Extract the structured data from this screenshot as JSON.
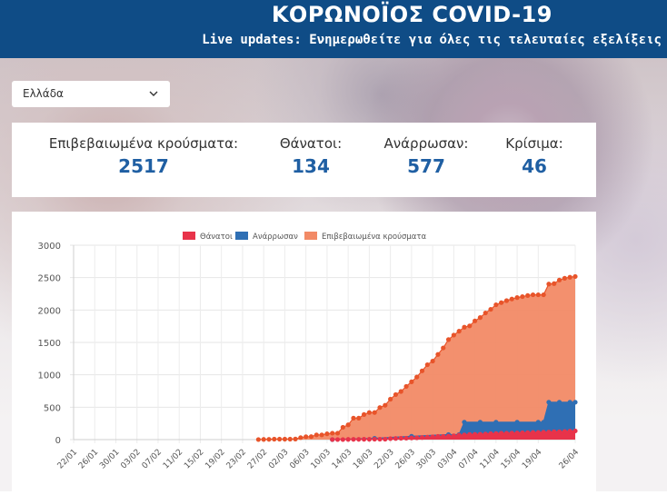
{
  "header": {
    "title": "ΚΟΡΩΝΟΪΟΣ COVID-19",
    "subtitle": "Live updates: Ενημερωθείτε για όλες τις τελευταίες εξελίξεις"
  },
  "country_select": {
    "value": "Ελλάδα"
  },
  "stats": [
    {
      "label": "Επιβεβαιωμένα κρούσματα:",
      "value": "2517"
    },
    {
      "label": "Θάνατοι:",
      "value": "134"
    },
    {
      "label": "Ανάρρωσαν:",
      "value": "577"
    },
    {
      "label": "Κρίσιμα:",
      "value": "46"
    }
  ],
  "colors": {
    "header_bg": "#0f4c86",
    "deaths": "#e8334a",
    "recovered": "#2f6fb4",
    "confirmed": "#f28a66",
    "confirmed_points": "#e8542a",
    "stat_value": "#1f5fa3"
  },
  "chart_data": {
    "type": "area",
    "x_tick_labels": [
      "22/01",
      "26/01",
      "30/01",
      "03/02",
      "07/02",
      "11/02",
      "15/02",
      "19/02",
      "23/02",
      "27/02",
      "02/03",
      "06/03",
      "10/03",
      "14/03",
      "18/03",
      "22/03",
      "26/03",
      "30/03",
      "03/04",
      "07/04",
      "11/04",
      "15/04",
      "19/04",
      "26/04"
    ],
    "ylim": [
      0,
      3000
    ],
    "y_ticks": [
      "0",
      "500",
      "1000",
      "1500",
      "2000",
      "2500",
      "3000"
    ],
    "grid": true,
    "legend_position": "top",
    "series": [
      {
        "name": "Θάνατοι",
        "points": [
          [
            "11/03",
            1
          ],
          [
            "12/03",
            1
          ],
          [
            "13/03",
            1
          ],
          [
            "14/03",
            3
          ],
          [
            "15/03",
            4
          ],
          [
            "16/03",
            4
          ],
          [
            "17/03",
            5
          ],
          [
            "18/03",
            5
          ],
          [
            "19/03",
            6
          ],
          [
            "20/03",
            6
          ],
          [
            "21/03",
            6
          ],
          [
            "22/03",
            15
          ],
          [
            "23/03",
            17
          ],
          [
            "24/03",
            20
          ],
          [
            "25/03",
            22
          ],
          [
            "26/03",
            26
          ],
          [
            "27/03",
            28
          ],
          [
            "28/03",
            32
          ],
          [
            "29/03",
            38
          ],
          [
            "30/03",
            43
          ],
          [
            "31/03",
            49
          ],
          [
            "01/04",
            50
          ],
          [
            "02/04",
            53
          ],
          [
            "03/04",
            59
          ],
          [
            "04/04",
            68
          ],
          [
            "05/04",
            73
          ],
          [
            "06/04",
            79
          ],
          [
            "07/04",
            81
          ],
          [
            "08/04",
            83
          ],
          [
            "09/04",
            86
          ],
          [
            "10/04",
            92
          ],
          [
            "11/04",
            93
          ],
          [
            "12/04",
            98
          ],
          [
            "13/04",
            99
          ],
          [
            "14/04",
            101
          ],
          [
            "15/04",
            102
          ],
          [
            "16/04",
            105
          ],
          [
            "17/04",
            108
          ],
          [
            "18/04",
            110
          ],
          [
            "19/04",
            110
          ],
          [
            "20/04",
            114
          ],
          [
            "21/04",
            116
          ],
          [
            "22/04",
            121
          ],
          [
            "23/04",
            121
          ],
          [
            "24/04",
            125
          ],
          [
            "25/04",
            130
          ],
          [
            "26/04",
            134
          ]
        ]
      },
      {
        "name": "Ανάρρωσαν",
        "points": [
          [
            "11/03",
            0
          ],
          [
            "19/03",
            19
          ],
          [
            "26/03",
            52
          ],
          [
            "02/04",
            78
          ],
          [
            "04/04",
            78
          ],
          [
            "05/04",
            269
          ],
          [
            "08/04",
            269
          ],
          [
            "11/04",
            269
          ],
          [
            "15/04",
            269
          ],
          [
            "19/04",
            269
          ],
          [
            "20/04",
            269
          ],
          [
            "21/04",
            577
          ],
          [
            "23/04",
            577
          ],
          [
            "25/04",
            577
          ],
          [
            "26/04",
            577
          ]
        ]
      },
      {
        "name": "Επιβεβαιωμένα κρούσματα",
        "points": [
          [
            "26/02",
            1
          ],
          [
            "27/02",
            3
          ],
          [
            "28/02",
            4
          ],
          [
            "29/02",
            7
          ],
          [
            "01/03",
            7
          ],
          [
            "02/03",
            7
          ],
          [
            "03/03",
            7
          ],
          [
            "04/03",
            9
          ],
          [
            "05/03",
            31
          ],
          [
            "06/03",
            45
          ],
          [
            "07/03",
            46
          ],
          [
            "08/03",
            73
          ],
          [
            "09/03",
            73
          ],
          [
            "10/03",
            89
          ],
          [
            "11/03",
            99
          ],
          [
            "12/03",
            99
          ],
          [
            "13/03",
            190
          ],
          [
            "14/03",
            228
          ],
          [
            "15/03",
            331
          ],
          [
            "16/03",
            331
          ],
          [
            "17/03",
            387
          ],
          [
            "18/03",
            418
          ],
          [
            "19/03",
            418
          ],
          [
            "20/03",
            495
          ],
          [
            "21/03",
            530
          ],
          [
            "22/03",
            624
          ],
          [
            "23/03",
            695
          ],
          [
            "24/03",
            743
          ],
          [
            "25/03",
            821
          ],
          [
            "26/03",
            892
          ],
          [
            "27/03",
            966
          ],
          [
            "28/03",
            1061
          ],
          [
            "29/03",
            1156
          ],
          [
            "30/03",
            1212
          ],
          [
            "31/03",
            1314
          ],
          [
            "01/04",
            1415
          ],
          [
            "02/04",
            1544
          ],
          [
            "03/04",
            1613
          ],
          [
            "04/04",
            1673
          ],
          [
            "05/04",
            1735
          ],
          [
            "06/04",
            1755
          ],
          [
            "07/04",
            1832
          ],
          [
            "08/04",
            1884
          ],
          [
            "09/04",
            1955
          ],
          [
            "10/04",
            2011
          ],
          [
            "11/04",
            2081
          ],
          [
            "12/04",
            2114
          ],
          [
            "13/04",
            2145
          ],
          [
            "14/04",
            2170
          ],
          [
            "15/04",
            2192
          ],
          [
            "16/04",
            2207
          ],
          [
            "17/04",
            2224
          ],
          [
            "18/04",
            2235
          ],
          [
            "19/04",
            2235
          ],
          [
            "20/04",
            2235
          ],
          [
            "21/04",
            2401
          ],
          [
            "22/04",
            2408
          ],
          [
            "23/04",
            2463
          ],
          [
            "24/04",
            2490
          ],
          [
            "25/04",
            2506
          ],
          [
            "26/04",
            2517
          ]
        ]
      }
    ]
  }
}
